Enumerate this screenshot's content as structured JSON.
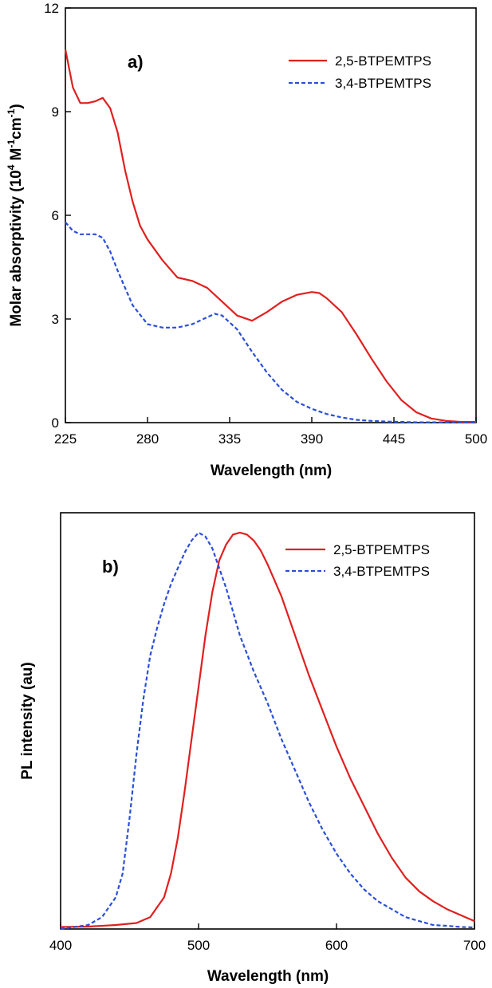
{
  "colors": {
    "series_a": "#e02020",
    "series_b": "#2a4fd8"
  },
  "chart_data": [
    {
      "type": "line",
      "panel_label": "a)",
      "xlabel": "Wavelength (nm)",
      "ylabel_prefix": "Molar absorptivity (10",
      "ylabel_sup1": "4",
      "ylabel_mid1": " M",
      "ylabel_sup2": "-1",
      "ylabel_mid2": "cm",
      "ylabel_sup3": "-1",
      "ylabel_suffix": ")",
      "xlim": [
        225,
        500
      ],
      "ylim": [
        0,
        12
      ],
      "xticks": [
        225,
        280,
        335,
        390,
        445,
        500
      ],
      "yticks": [
        0,
        3,
        6,
        9,
        12
      ],
      "legend": [
        "2,5-BTPEMTPS",
        "3,4-BTPEMTPS"
      ],
      "series": [
        {
          "name": "2,5-BTPEMTPS",
          "style": "solid",
          "x": [
            225,
            230,
            235,
            240,
            245,
            250,
            255,
            260,
            265,
            270,
            275,
            280,
            290,
            300,
            310,
            320,
            330,
            340,
            350,
            360,
            370,
            380,
            390,
            395,
            400,
            410,
            420,
            430,
            440,
            450,
            460,
            470,
            480,
            490,
            500
          ],
          "y": [
            10.8,
            9.7,
            9.25,
            9.25,
            9.3,
            9.4,
            9.1,
            8.4,
            7.3,
            6.4,
            5.7,
            5.3,
            4.7,
            4.2,
            4.1,
            3.9,
            3.5,
            3.1,
            2.95,
            3.2,
            3.5,
            3.7,
            3.78,
            3.75,
            3.6,
            3.2,
            2.55,
            1.85,
            1.2,
            0.65,
            0.3,
            0.12,
            0.05,
            0.02,
            0.02
          ]
        },
        {
          "name": "3,4-BTPEMTPS",
          "style": "dashed",
          "x": [
            225,
            230,
            235,
            240,
            245,
            250,
            255,
            260,
            265,
            270,
            280,
            290,
            300,
            310,
            320,
            325,
            330,
            340,
            350,
            360,
            370,
            380,
            390,
            400,
            410,
            420,
            430,
            440,
            450,
            460,
            480,
            490,
            500
          ],
          "y": [
            5.8,
            5.55,
            5.45,
            5.45,
            5.45,
            5.35,
            4.95,
            4.4,
            3.9,
            3.4,
            2.85,
            2.75,
            2.75,
            2.85,
            3.05,
            3.15,
            3.1,
            2.7,
            2.05,
            1.45,
            0.95,
            0.6,
            0.4,
            0.25,
            0.15,
            0.08,
            0.05,
            0.03,
            0.02,
            0.01,
            0.01,
            0.01,
            0.0
          ]
        }
      ]
    },
    {
      "type": "line",
      "panel_label": "b)",
      "xlabel": "Wavelength (nm)",
      "ylabel": "PL intensity (au)",
      "xlim": [
        400,
        700
      ],
      "ylim": [
        0,
        1.05
      ],
      "xticks": [
        400,
        500,
        600,
        700
      ],
      "yticks": [],
      "legend": [
        "2,5-BTPEMTPS",
        "3,4-BTPEMTPS"
      ],
      "series": [
        {
          "name": "2,5-BTPEMTPS",
          "style": "solid",
          "x": [
            400,
            420,
            440,
            455,
            465,
            475,
            480,
            485,
            490,
            495,
            500,
            505,
            510,
            515,
            520,
            525,
            530,
            535,
            540,
            545,
            550,
            560,
            570,
            580,
            590,
            600,
            610,
            620,
            630,
            640,
            650,
            660,
            670,
            680,
            690,
            700
          ],
          "y": [
            0.005,
            0.006,
            0.01,
            0.015,
            0.03,
            0.08,
            0.14,
            0.23,
            0.35,
            0.48,
            0.61,
            0.74,
            0.85,
            0.93,
            0.97,
            0.995,
            1.0,
            0.995,
            0.98,
            0.955,
            0.92,
            0.84,
            0.74,
            0.64,
            0.55,
            0.46,
            0.38,
            0.31,
            0.24,
            0.18,
            0.13,
            0.095,
            0.07,
            0.05,
            0.035,
            0.02
          ]
        },
        {
          "name": "3,4-BTPEMTPS",
          "style": "dashed",
          "x": [
            400,
            410,
            420,
            430,
            440,
            445,
            450,
            455,
            460,
            465,
            470,
            475,
            480,
            485,
            490,
            495,
            500,
            505,
            510,
            515,
            520,
            525,
            530,
            540,
            550,
            560,
            570,
            580,
            590,
            600,
            610,
            620,
            630,
            640,
            650,
            660,
            670,
            680,
            690,
            700
          ],
          "y": [
            0.0,
            0.005,
            0.01,
            0.03,
            0.08,
            0.14,
            0.28,
            0.44,
            0.58,
            0.69,
            0.76,
            0.82,
            0.87,
            0.91,
            0.95,
            0.98,
            1.0,
            0.99,
            0.96,
            0.91,
            0.86,
            0.8,
            0.74,
            0.65,
            0.57,
            0.48,
            0.4,
            0.32,
            0.25,
            0.19,
            0.14,
            0.1,
            0.07,
            0.05,
            0.03,
            0.02,
            0.01,
            0.008,
            0.005,
            0.004
          ]
        }
      ]
    }
  ]
}
